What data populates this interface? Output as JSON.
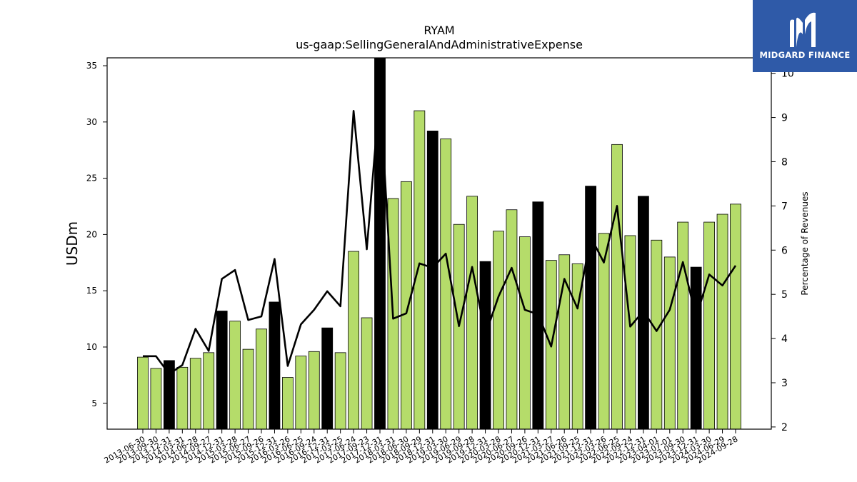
{
  "chart_data": {
    "type": "bar",
    "title": "RYAM",
    "subtitle": "us-gaap:SellingGeneralAndAdministrativeExpense",
    "ylabel": "USDm",
    "y2label": "Percentage of Revenues",
    "ylim": [
      2.7,
      35.7
    ],
    "y2lim": [
      1.95,
      10.35
    ],
    "yticks": [
      5,
      10,
      15,
      20,
      25,
      30,
      35
    ],
    "y2ticks": [
      2,
      3,
      4,
      5,
      6,
      7,
      8,
      9,
      10
    ],
    "grid": false,
    "categories": [
      "2013-06-30",
      "2013-09-30",
      "2013-12-31",
      "2014-03-31",
      "2014-06-28",
      "2014-09-27",
      "2014-12-31",
      "2015-03-28",
      "2015-06-27",
      "2015-09-26",
      "2015-12-31",
      "2016-03-26",
      "2016-06-25",
      "2016-09-24",
      "2016-12-31",
      "2017-03-25",
      "2017-06-24",
      "2017-09-23",
      "2017-12-31",
      "2018-03-31",
      "2018-06-30",
      "2018-09-29",
      "2018-12-31",
      "2019-03-30",
      "2019-06-29",
      "2019-09-28",
      "2019-12-31",
      "2020-03-28",
      "2020-06-27",
      "2020-09-26",
      "2020-12-31",
      "2021-03-27",
      "2021-06-26",
      "2021-09-25",
      "2021-12-31",
      "2022-03-26",
      "2022-06-25",
      "2022-09-24",
      "2022-12-31",
      "2023-04-01",
      "2023-07-01",
      "2023-09-30",
      "2023-12-31",
      "2024-03-30",
      "2024-06-29",
      "2024-09-28"
    ],
    "series": [
      {
        "type": "bar",
        "values": [
          9.1,
          8.1,
          8.8,
          8.2,
          9.0,
          9.5,
          13.2,
          12.3,
          9.8,
          11.6,
          14.0,
          7.3,
          9.2,
          9.6,
          11.7,
          9.5,
          18.5,
          12.6,
          36.0,
          23.2,
          24.7,
          31.0,
          29.2,
          28.5,
          20.9,
          23.4,
          17.6,
          20.3,
          22.2,
          19.8,
          22.9,
          17.7,
          18.2,
          17.4,
          24.3,
          20.1,
          28.0,
          19.9,
          23.4,
          19.5,
          18.0,
          21.1,
          17.1,
          21.1,
          21.8,
          22.7
        ],
        "highlight": [
          false,
          false,
          true,
          false,
          false,
          false,
          true,
          false,
          false,
          false,
          true,
          false,
          false,
          false,
          true,
          false,
          false,
          false,
          true,
          false,
          false,
          false,
          true,
          false,
          false,
          false,
          true,
          false,
          false,
          false,
          true,
          false,
          false,
          false,
          true,
          false,
          false,
          false,
          true,
          false,
          false,
          false,
          true,
          false,
          false,
          false
        ]
      },
      {
        "type": "line",
        "axis": "right",
        "values": [
          3.6,
          3.6,
          3.2,
          3.4,
          4.22,
          3.72,
          5.35,
          5.55,
          4.42,
          4.5,
          5.8,
          3.38,
          4.32,
          4.65,
          5.07,
          4.73,
          9.15,
          6.02,
          9.6,
          4.45,
          4.57,
          5.7,
          5.6,
          5.92,
          4.28,
          5.62,
          4.08,
          4.95,
          5.6,
          4.65,
          4.55,
          3.82,
          5.35,
          4.68,
          6.3,
          5.72,
          7.0,
          4.27,
          4.62,
          4.17,
          4.65,
          5.73,
          4.48,
          5.45,
          5.2,
          5.65
        ]
      }
    ],
    "colors": {
      "bar": "#b5dc6a",
      "highlight": "#000000",
      "line": "#000000"
    }
  },
  "logo": {
    "text": "MIDGARD FINANCE",
    "background": "#2f5aa8"
  }
}
